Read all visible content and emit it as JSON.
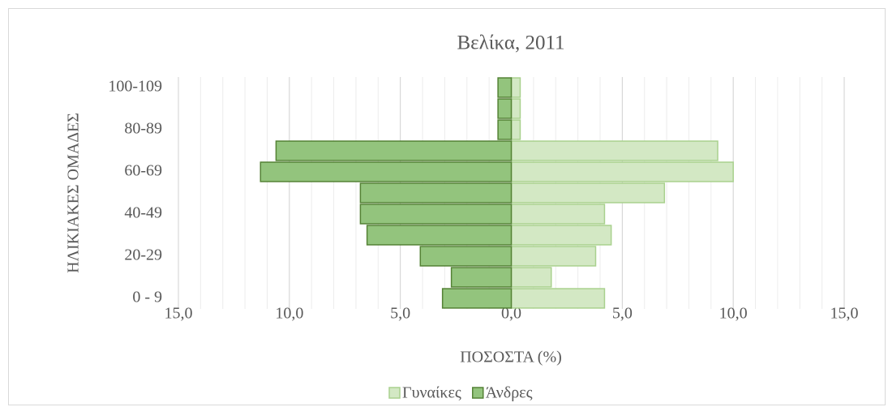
{
  "chart_data": {
    "type": "bar",
    "orientation": "horizontal",
    "title": "Βελίκα, 2011",
    "xlabel": "ΠΟΣΟΣΤΑ (%)",
    "ylabel": "ΗΛΙΚΙΑΚΕΣ ΟΜΑΔΕΣ",
    "categories": [
      "0 - 9",
      null,
      "20-29",
      null,
      "40-49",
      null,
      "60-69",
      null,
      "80-89",
      null,
      "100-109"
    ],
    "series": [
      {
        "name": "Γυναίκες",
        "color": "#d3e8c4",
        "edgecolor": "#a9d18e",
        "values": [
          4.2,
          1.8,
          3.8,
          4.5,
          4.2,
          6.9,
          10.0,
          9.3,
          0.4,
          0.4,
          0.4
        ]
      },
      {
        "name": "Άνδρες",
        "color": "#93c47d",
        "edgecolor": "#548235",
        "values": [
          -3.1,
          -2.7,
          -4.1,
          -6.5,
          -6.8,
          -6.8,
          -11.3,
          -10.6,
          -0.6,
          -0.6,
          -0.6
        ]
      }
    ],
    "xlim": [
      -15,
      15
    ],
    "xticks": [
      {
        "value": -15,
        "label": "15,0"
      },
      {
        "value": -10,
        "label": "10,0"
      },
      {
        "value": -5,
        "label": "5,0"
      },
      {
        "value": 0,
        "label": "0,0"
      },
      {
        "value": 5,
        "label": "5,0"
      },
      {
        "value": 10,
        "label": "10,0"
      },
      {
        "value": 15,
        "label": "15,0"
      }
    ],
    "x_minor_ticks": [
      -14,
      -13,
      -12,
      -11,
      -9,
      -8,
      -7,
      -6,
      -4,
      -3,
      -2,
      -1,
      1,
      2,
      3,
      4,
      6,
      7,
      8,
      9,
      11,
      12,
      13,
      14
    ],
    "grid": true,
    "legend": "bottom"
  }
}
